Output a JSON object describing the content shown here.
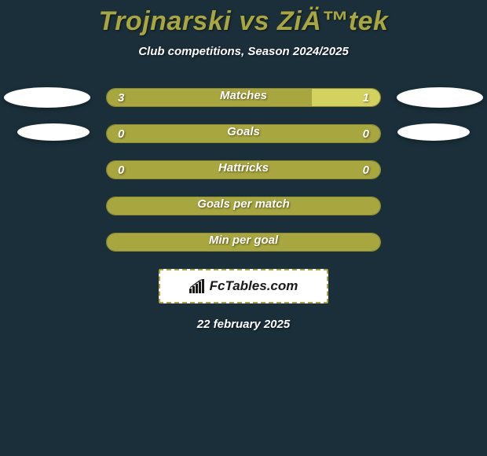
{
  "title": "Trojnarski vs ZiÄ™tek",
  "subtitle": "Club competitions, Season 2024/2025",
  "date": "22 february 2025",
  "logo_text": "FcTables.com",
  "colors": {
    "bar_left": "#a8a63e",
    "bar_right": "#d4d25e",
    "bar_full": "#a8a63e",
    "bar_border": "#8f8d30"
  },
  "rows": [
    {
      "label": "Matches",
      "left_value": "3",
      "right_value": "1",
      "left_pct": 75,
      "left_color": "#a8a63e",
      "right_color": "#d4d25e",
      "has_ovals": true,
      "oval_class_l": "oval-tl",
      "oval_class_r": "oval-tr"
    },
    {
      "label": "Goals",
      "left_value": "0",
      "right_value": "0",
      "left_pct": 50,
      "left_color": "#a8a63e",
      "right_color": "#a8a63e",
      "has_ovals": true,
      "oval_class_l": "oval-ml",
      "oval_class_r": "oval-mr"
    },
    {
      "label": "Hattricks",
      "left_value": "0",
      "right_value": "0",
      "left_pct": 50,
      "left_color": "#a8a63e",
      "right_color": "#a8a63e",
      "has_ovals": false
    },
    {
      "label": "Goals per match",
      "left_value": "",
      "right_value": "",
      "left_pct": 100,
      "left_color": "#a8a63e",
      "right_color": "#a8a63e",
      "has_ovals": false
    },
    {
      "label": "Min per goal",
      "left_value": "",
      "right_value": "",
      "left_pct": 100,
      "left_color": "#a8a63e",
      "right_color": "#a8a63e",
      "has_ovals": false
    }
  ]
}
